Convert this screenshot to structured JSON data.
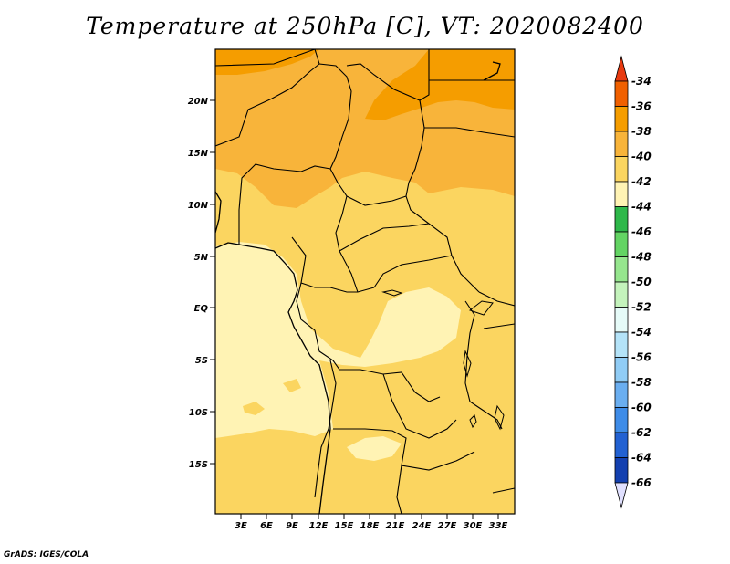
{
  "title": "Temperature at 250hPa [C], VT: 2020082400",
  "credit": "GrADS: IGES/COLA",
  "map": {
    "lat_labels": [
      "20N",
      "15N",
      "10N",
      "5N",
      "EQ",
      "5S",
      "10S",
      "15S"
    ],
    "lon_labels": [
      "3E",
      "6E",
      "9E",
      "12E",
      "15E",
      "18E",
      "21E",
      "24E",
      "27E",
      "30E",
      "33E"
    ]
  },
  "colorbar": {
    "labels": [
      "-34",
      "-36",
      "-38",
      "-40",
      "-42",
      "-44",
      "-46",
      "-48",
      "-50",
      "-52",
      "-54",
      "-56",
      "-58",
      "-60",
      "-62",
      "-64",
      "-66"
    ],
    "colors": [
      "#f06000",
      "#f59d00",
      "#f8b43a",
      "#fbd560",
      "#fff3b4",
      "#2eb84a",
      "#63d463",
      "#96e68e",
      "#c4f3bc",
      "#e6fbf8",
      "#b4e3f8",
      "#90ccf5",
      "#6aaef0",
      "#3e8ce8",
      "#2261d2",
      "#1340b0",
      "#0e1a7e"
    ],
    "top_arrow_color": "#e83a10",
    "bottom_arrow_color": "#e0e0ff"
  }
}
